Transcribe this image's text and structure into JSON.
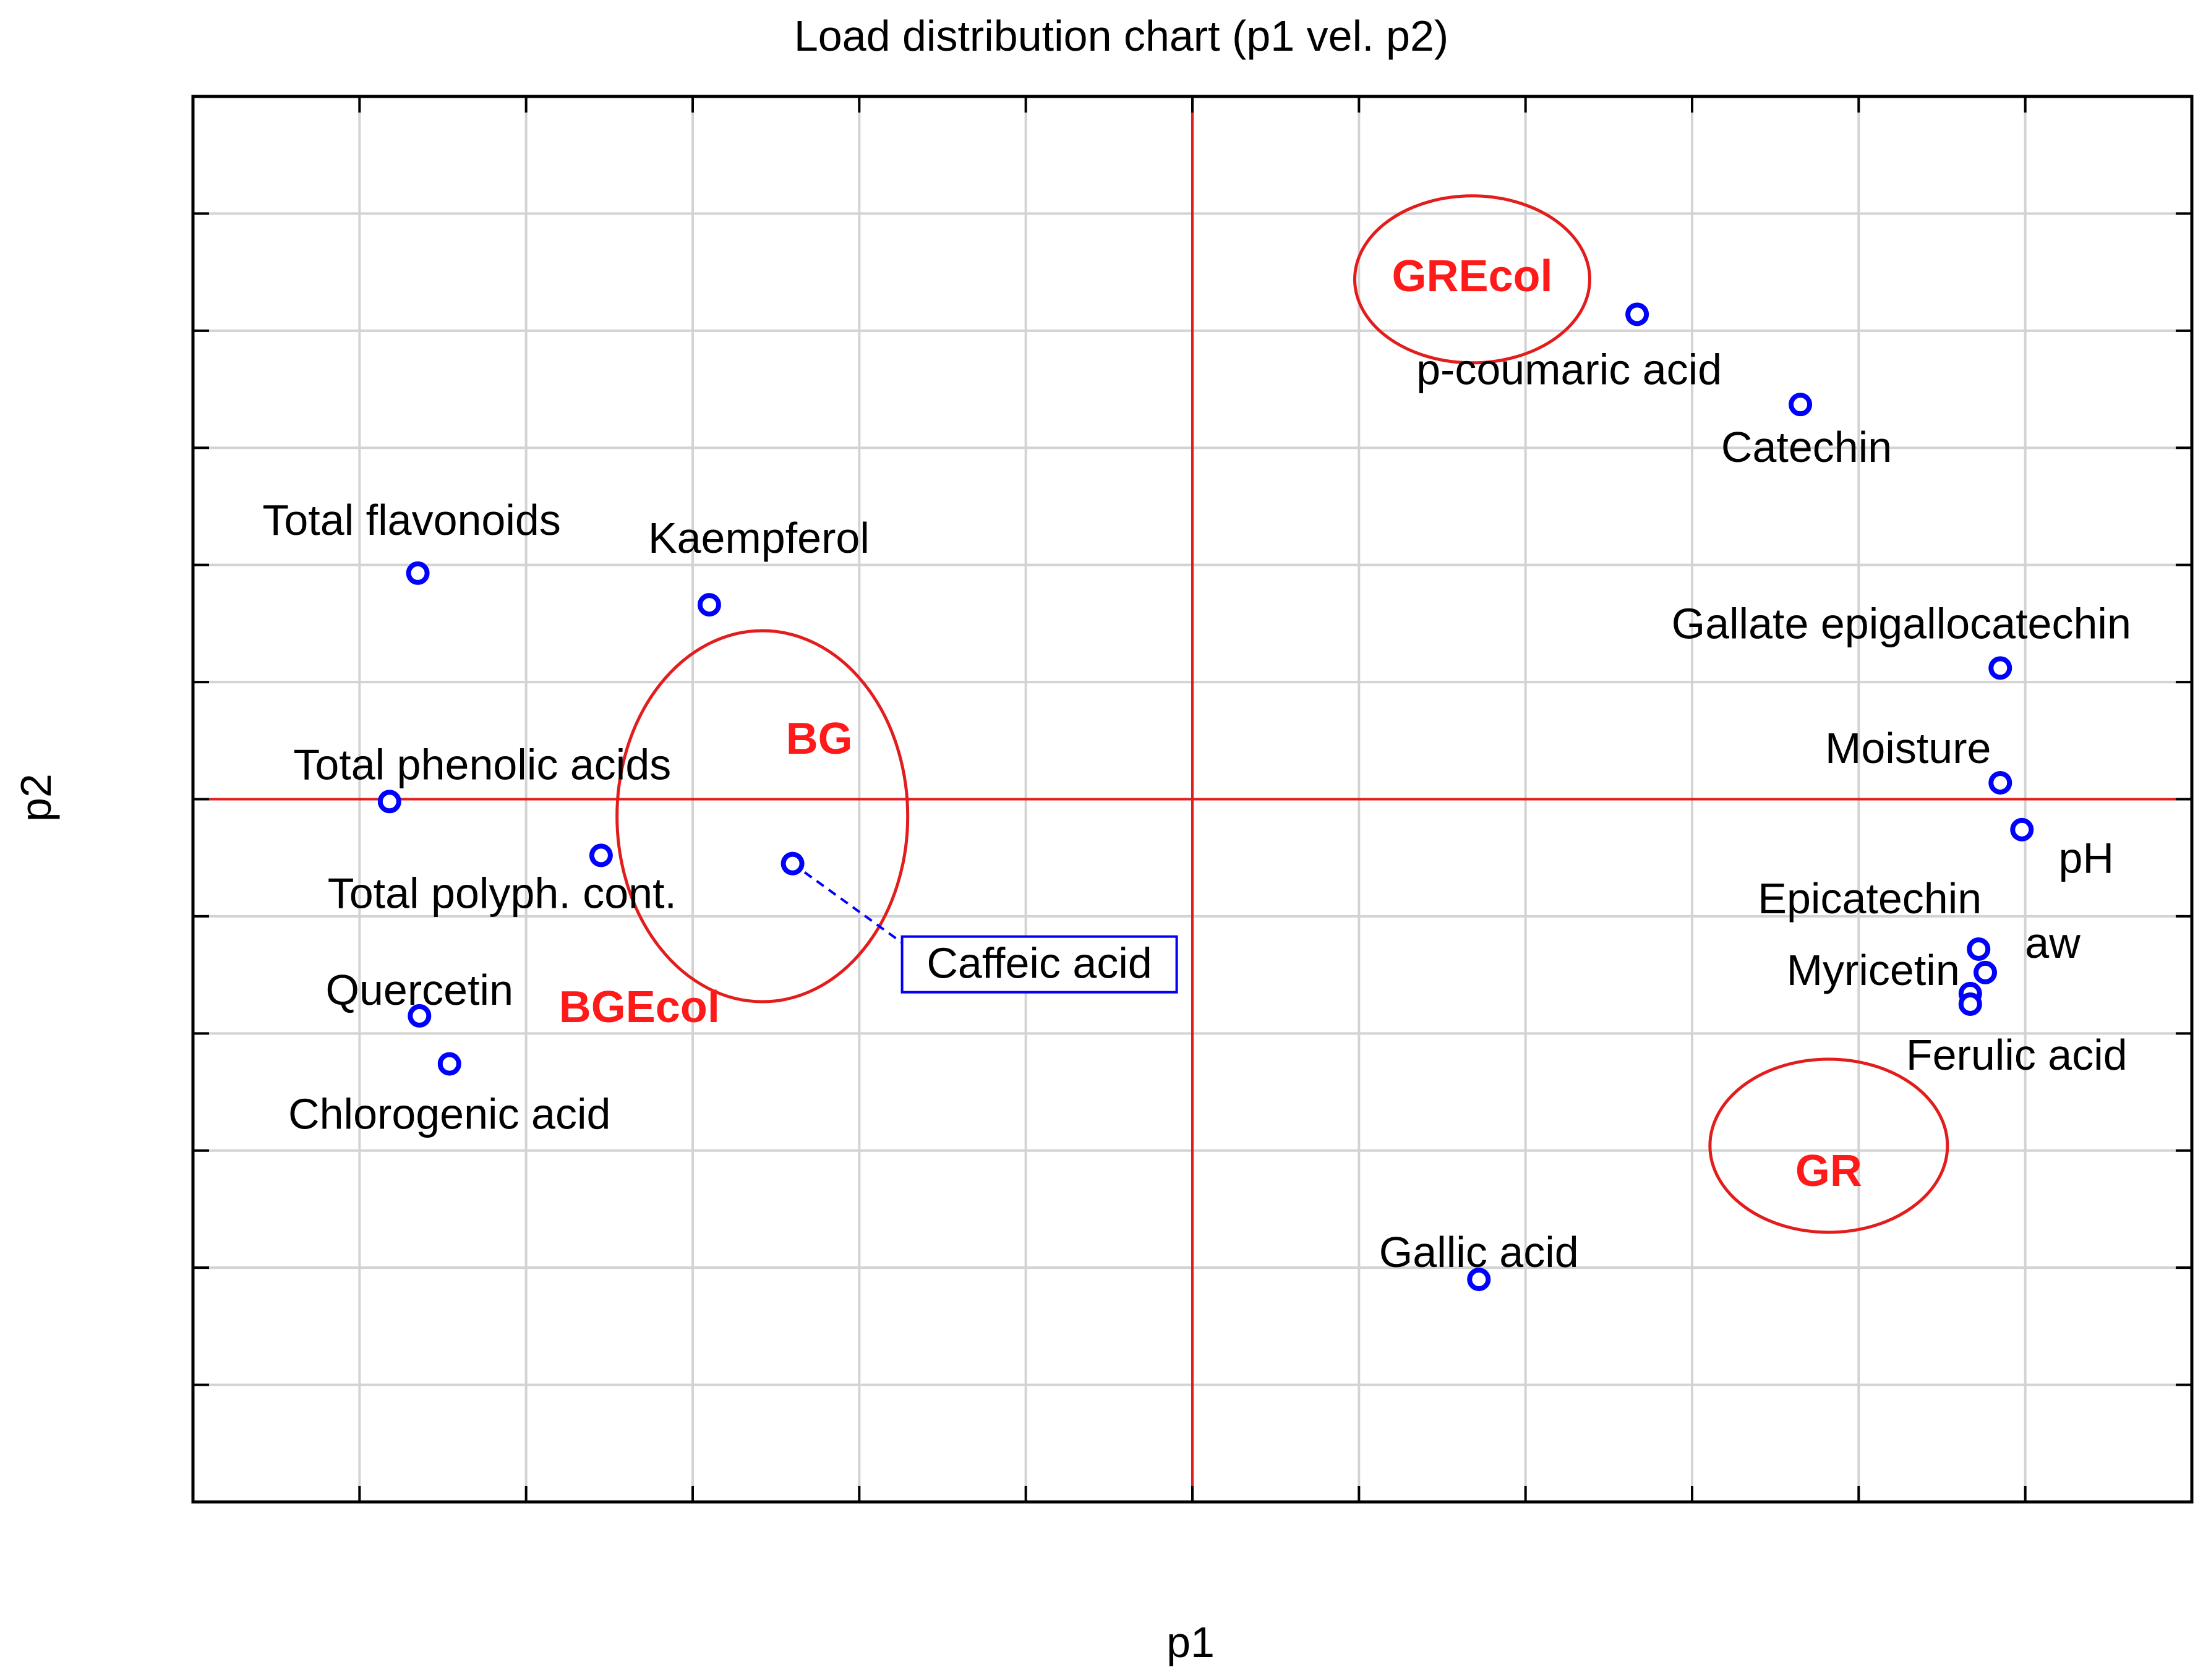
{
  "chart_data": {
    "type": "scatter",
    "title": "Load distribution chart (p1 vel. p2)",
    "xlabel": "p1",
    "ylabel": "p2",
    "xlim": [
      -6,
      6
    ],
    "ylim": [
      -6,
      6
    ],
    "grid": true,
    "colors": {
      "points": "#0000ff",
      "groups": "#ff1a1a",
      "axes_zero": "#e31c1c",
      "grid": "#d3d3d3"
    },
    "points": [
      {
        "name": "Total flavonoids",
        "x": -4.65,
        "y": 1.93
      },
      {
        "name": "Kaempferol",
        "x": -2.9,
        "y": 1.66
      },
      {
        "name": "Total phenolic acids",
        "x": -4.82,
        "y": -0.02
      },
      {
        "name": "Total polyph. cont.",
        "x": -3.55,
        "y": -0.48
      },
      {
        "name": "Quercetin",
        "x": -4.64,
        "y": -1.85
      },
      {
        "name": "Chlorogenic acid",
        "x": -4.46,
        "y": -2.26
      },
      {
        "name": "Caffeic acid",
        "x": -2.4,
        "y": -0.55
      },
      {
        "name": "p-coumaric acid",
        "x": 2.67,
        "y": 4.14
      },
      {
        "name": "Catechin",
        "x": 3.65,
        "y": 3.37
      },
      {
        "name": "Gallate epigallocatechin",
        "x": 4.85,
        "y": 1.12
      },
      {
        "name": "Moisture",
        "x": 4.85,
        "y": 0.14
      },
      {
        "name": "pH",
        "x": 4.98,
        "y": -0.26
      },
      {
        "name": "Epicatechin",
        "x": 4.72,
        "y": -1.28
      },
      {
        "name": "aw",
        "x": 4.76,
        "y": -1.48
      },
      {
        "name": "Myricetin",
        "x": 4.67,
        "y": -1.66
      },
      {
        "name": "Ferulic acid",
        "x": 4.67,
        "y": -1.75
      },
      {
        "name": "Gallic acid",
        "x": 1.72,
        "y": -4.1
      }
    ],
    "groups": [
      {
        "name": "GREcol",
        "x": 1.68,
        "y": 4.47
      },
      {
        "name": "BG",
        "x": -2.24,
        "y": 0.52
      },
      {
        "name": "BGEcol",
        "x": -3.32,
        "y": -1.77
      },
      {
        "name": "GR",
        "x": 3.82,
        "y": -3.17
      }
    ]
  }
}
